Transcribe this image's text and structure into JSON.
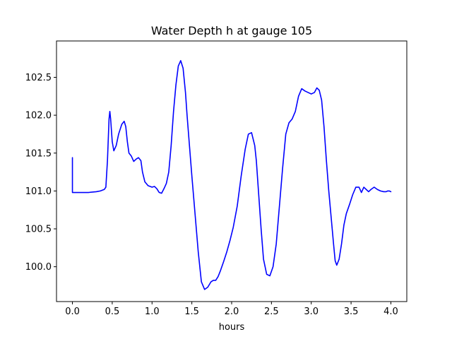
{
  "chart_data": {
    "type": "line",
    "title": "Water Depth h at gauge 105",
    "xlabel": "hours",
    "ylabel": "",
    "xlim": [
      -0.2,
      4.2
    ],
    "ylim": [
      99.54,
      102.98
    ],
    "x_ticks": [
      0.0,
      0.5,
      1.0,
      1.5,
      2.0,
      2.5,
      3.0,
      3.5,
      4.0
    ],
    "x_tick_labels": [
      "0.0",
      "0.5",
      "1.0",
      "1.5",
      "2.0",
      "2.5",
      "3.0",
      "3.5",
      "4.0"
    ],
    "y_ticks": [
      100.0,
      100.5,
      101.0,
      101.5,
      102.0,
      102.5
    ],
    "y_tick_labels": [
      "100.0",
      "100.5",
      "101.0",
      "101.5",
      "102.0",
      "102.5"
    ],
    "grid": false,
    "legend": "none",
    "series": [
      {
        "color": "#0000ff",
        "x": [
          0.0,
          0.0,
          0.02,
          0.1,
          0.2,
          0.3,
          0.35,
          0.4,
          0.42,
          0.44,
          0.46,
          0.47,
          0.48,
          0.5,
          0.52,
          0.55,
          0.58,
          0.62,
          0.65,
          0.67,
          0.69,
          0.71,
          0.74,
          0.77,
          0.8,
          0.83,
          0.86,
          0.88,
          0.91,
          0.95,
          1.0,
          1.03,
          1.06,
          1.09,
          1.12,
          1.15,
          1.18,
          1.21,
          1.24,
          1.27,
          1.3,
          1.33,
          1.36,
          1.39,
          1.42,
          1.44,
          1.47,
          1.5,
          1.54,
          1.58,
          1.62,
          1.66,
          1.7,
          1.74,
          1.77,
          1.8,
          1.83,
          1.86,
          1.9,
          1.94,
          1.98,
          2.02,
          2.07,
          2.12,
          2.17,
          2.21,
          2.25,
          2.29,
          2.31,
          2.33,
          2.35,
          2.37,
          2.4,
          2.44,
          2.48,
          2.52,
          2.56,
          2.6,
          2.64,
          2.68,
          2.72,
          2.76,
          2.8,
          2.84,
          2.88,
          2.92,
          2.96,
          3.0,
          3.04,
          3.07,
          3.1,
          3.13,
          3.16,
          3.19,
          3.22,
          3.25,
          3.28,
          3.3,
          3.32,
          3.35,
          3.38,
          3.41,
          3.44,
          3.48,
          3.52,
          3.56,
          3.6,
          3.63,
          3.66,
          3.69,
          3.72,
          3.75,
          3.79,
          3.83,
          3.87,
          3.91,
          3.94,
          3.96,
          3.98,
          4.0
        ],
        "y": [
          101.44,
          100.98,
          100.98,
          100.98,
          100.98,
          100.99,
          101.0,
          101.02,
          101.05,
          101.4,
          101.95,
          102.05,
          101.95,
          101.65,
          101.53,
          101.6,
          101.75,
          101.88,
          101.92,
          101.85,
          101.65,
          101.5,
          101.46,
          101.39,
          101.42,
          101.44,
          101.4,
          101.25,
          101.12,
          101.07,
          101.05,
          101.06,
          101.03,
          100.98,
          100.97,
          101.03,
          101.1,
          101.25,
          101.6,
          102.05,
          102.4,
          102.65,
          102.72,
          102.62,
          102.3,
          102.0,
          101.6,
          101.2,
          100.7,
          100.2,
          99.8,
          99.7,
          99.73,
          99.8,
          99.82,
          99.82,
          99.87,
          99.95,
          100.07,
          100.2,
          100.35,
          100.52,
          100.8,
          101.2,
          101.55,
          101.75,
          101.77,
          101.6,
          101.4,
          101.1,
          100.8,
          100.5,
          100.1,
          99.9,
          99.88,
          100.0,
          100.3,
          100.8,
          101.3,
          101.75,
          101.9,
          101.95,
          102.05,
          102.25,
          102.35,
          102.32,
          102.3,
          102.28,
          102.3,
          102.36,
          102.33,
          102.2,
          101.85,
          101.4,
          101.0,
          100.65,
          100.3,
          100.08,
          100.02,
          100.1,
          100.3,
          100.55,
          100.7,
          100.82,
          100.95,
          101.05,
          101.05,
          100.98,
          101.05,
          101.02,
          100.99,
          101.02,
          101.05,
          101.02,
          101.0,
          100.99,
          100.99,
          101.0,
          101.0,
          100.99
        ]
      }
    ]
  }
}
